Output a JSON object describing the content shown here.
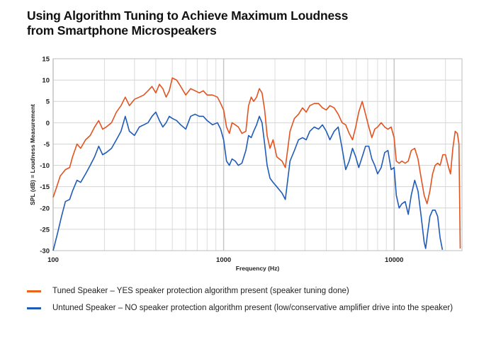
{
  "title_lines": [
    "Using Algorithm Tuning to Achieve Maximum Loudness",
    "from Smartphone Microspeakers"
  ],
  "chart_data": {
    "type": "line",
    "xscale": "log",
    "xlabel": "Frequency (Hz)",
    "ylabel": "SPL (dB) = Loudness Measurement",
    "xlim": [
      100,
      25000
    ],
    "ylim": [
      -30,
      15
    ],
    "xticks": [
      100,
      1000,
      10000
    ],
    "xtick_labels": [
      "100",
      "1000",
      "10000"
    ],
    "yticks": [
      15,
      10,
      5,
      0,
      -5,
      -10,
      -15,
      -20,
      -25,
      -30
    ],
    "ytick_labels": [
      "15",
      "10",
      "5",
      "0",
      "-5",
      "-10",
      "-15",
      "-20",
      "-25",
      "-30"
    ],
    "grid": true,
    "series": [
      {
        "name": "Tuned Speaker",
        "color": "#e2531f",
        "points": [
          [
            100,
            -17.5
          ],
          [
            105,
            -15
          ],
          [
            110,
            -12.5
          ],
          [
            118,
            -11
          ],
          [
            125,
            -10.5
          ],
          [
            130,
            -8
          ],
          [
            138,
            -5
          ],
          [
            145,
            -6
          ],
          [
            155,
            -4
          ],
          [
            165,
            -3
          ],
          [
            175,
            -1
          ],
          [
            185,
            0.5
          ],
          [
            195,
            -1.5
          ],
          [
            205,
            -1
          ],
          [
            220,
            0
          ],
          [
            235,
            2.5
          ],
          [
            250,
            4
          ],
          [
            265,
            6
          ],
          [
            280,
            4
          ],
          [
            300,
            5.5
          ],
          [
            320,
            6
          ],
          [
            340,
            6.5
          ],
          [
            360,
            7.5
          ],
          [
            380,
            8.5
          ],
          [
            400,
            7
          ],
          [
            420,
            9
          ],
          [
            440,
            8
          ],
          [
            460,
            6
          ],
          [
            480,
            7.5
          ],
          [
            500,
            10.5
          ],
          [
            530,
            10
          ],
          [
            560,
            8.5
          ],
          [
            600,
            6.5
          ],
          [
            640,
            8
          ],
          [
            680,
            7.5
          ],
          [
            720,
            7
          ],
          [
            760,
            7.5
          ],
          [
            800,
            6.5
          ],
          [
            860,
            6.5
          ],
          [
            920,
            6
          ],
          [
            960,
            4.5
          ],
          [
            1000,
            3
          ],
          [
            1040,
            -1
          ],
          [
            1080,
            -2.5
          ],
          [
            1120,
            0
          ],
          [
            1170,
            -0.5
          ],
          [
            1220,
            -1
          ],
          [
            1280,
            -2.5
          ],
          [
            1350,
            -2
          ],
          [
            1400,
            4
          ],
          [
            1450,
            6
          ],
          [
            1500,
            5
          ],
          [
            1560,
            6
          ],
          [
            1620,
            8
          ],
          [
            1680,
            7
          ],
          [
            1740,
            3
          ],
          [
            1800,
            -3
          ],
          [
            1870,
            -6
          ],
          [
            1950,
            -4
          ],
          [
            2050,
            -8
          ],
          [
            2200,
            -9
          ],
          [
            2300,
            -10.5
          ],
          [
            2450,
            -2
          ],
          [
            2600,
            1
          ],
          [
            2750,
            2
          ],
          [
            2900,
            3.5
          ],
          [
            3050,
            2.5
          ],
          [
            3200,
            4
          ],
          [
            3400,
            4.5
          ],
          [
            3600,
            4.5
          ],
          [
            3800,
            3.5
          ],
          [
            4000,
            3
          ],
          [
            4200,
            4
          ],
          [
            4450,
            3.5
          ],
          [
            4700,
            2
          ],
          [
            4950,
            0
          ],
          [
            5200,
            -0.5
          ],
          [
            5450,
            -2.5
          ],
          [
            5700,
            -4
          ],
          [
            5950,
            -1
          ],
          [
            6200,
            2.5
          ],
          [
            6500,
            5
          ],
          [
            6800,
            2
          ],
          [
            7100,
            -1
          ],
          [
            7400,
            -3.5
          ],
          [
            7700,
            -1.5
          ],
          [
            8000,
            -1
          ],
          [
            8400,
            0
          ],
          [
            8800,
            -1
          ],
          [
            9200,
            -1.5
          ],
          [
            9600,
            -1
          ],
          [
            10000,
            -3.5
          ],
          [
            10300,
            -9
          ],
          [
            10700,
            -9.5
          ],
          [
            11100,
            -9
          ],
          [
            11600,
            -9.5
          ],
          [
            12100,
            -9
          ],
          [
            12600,
            -6.5
          ],
          [
            13200,
            -6
          ],
          [
            13800,
            -8.5
          ],
          [
            14400,
            -13
          ],
          [
            15000,
            -17
          ],
          [
            15600,
            -19
          ],
          [
            16200,
            -16
          ],
          [
            16800,
            -12
          ],
          [
            17400,
            -10
          ],
          [
            18000,
            -9.5
          ],
          [
            18600,
            -10
          ],
          [
            19300,
            -7.5
          ],
          [
            20000,
            -7.5
          ],
          [
            20700,
            -10
          ],
          [
            21400,
            -12
          ],
          [
            22100,
            -6
          ],
          [
            22800,
            -2
          ],
          [
            23500,
            -2.5
          ],
          [
            24000,
            -5
          ],
          [
            24400,
            -29.5
          ]
        ]
      },
      {
        "name": "Untuned Speaker",
        "color": "#1f5bb8",
        "points": [
          [
            100,
            -30
          ],
          [
            106,
            -26
          ],
          [
            112,
            -22
          ],
          [
            118,
            -18.5
          ],
          [
            125,
            -18
          ],
          [
            130,
            -16
          ],
          [
            138,
            -13.5
          ],
          [
            145,
            -14
          ],
          [
            155,
            -12
          ],
          [
            165,
            -10
          ],
          [
            175,
            -8
          ],
          [
            185,
            -5.5
          ],
          [
            195,
            -7.5
          ],
          [
            205,
            -7
          ],
          [
            220,
            -6
          ],
          [
            235,
            -4
          ],
          [
            250,
            -2
          ],
          [
            265,
            1.5
          ],
          [
            280,
            -2
          ],
          [
            300,
            -3
          ],
          [
            320,
            -1
          ],
          [
            340,
            -0.5
          ],
          [
            360,
            0
          ],
          [
            380,
            1.5
          ],
          [
            400,
            2.5
          ],
          [
            420,
            0.5
          ],
          [
            440,
            -1
          ],
          [
            460,
            0
          ],
          [
            480,
            1.5
          ],
          [
            500,
            1
          ],
          [
            530,
            0.5
          ],
          [
            560,
            -0.5
          ],
          [
            600,
            -1.5
          ],
          [
            640,
            1.5
          ],
          [
            680,
            2
          ],
          [
            720,
            1.5
          ],
          [
            760,
            1.5
          ],
          [
            800,
            0.5
          ],
          [
            860,
            -0.5
          ],
          [
            920,
            0
          ],
          [
            960,
            -1.5
          ],
          [
            1000,
            -4
          ],
          [
            1040,
            -9
          ],
          [
            1080,
            -10
          ],
          [
            1120,
            -8.5
          ],
          [
            1170,
            -9
          ],
          [
            1220,
            -10
          ],
          [
            1280,
            -9.5
          ],
          [
            1350,
            -6.5
          ],
          [
            1400,
            -3
          ],
          [
            1450,
            -3.5
          ],
          [
            1500,
            -2
          ],
          [
            1560,
            -0.5
          ],
          [
            1620,
            1.5
          ],
          [
            1680,
            0
          ],
          [
            1740,
            -5
          ],
          [
            1800,
            -10
          ],
          [
            1870,
            -13
          ],
          [
            1950,
            -14
          ],
          [
            2050,
            -15
          ],
          [
            2200,
            -16.5
          ],
          [
            2300,
            -18
          ],
          [
            2450,
            -9
          ],
          [
            2600,
            -6.5
          ],
          [
            2750,
            -4
          ],
          [
            2900,
            -3.5
          ],
          [
            3050,
            -4
          ],
          [
            3200,
            -2
          ],
          [
            3400,
            -1
          ],
          [
            3600,
            -1.5
          ],
          [
            3800,
            -0.5
          ],
          [
            4000,
            -2
          ],
          [
            4200,
            -4
          ],
          [
            4450,
            -2
          ],
          [
            4700,
            -1
          ],
          [
            4950,
            -6
          ],
          [
            5200,
            -11
          ],
          [
            5450,
            -9
          ],
          [
            5700,
            -6
          ],
          [
            5950,
            -8
          ],
          [
            6200,
            -10.5
          ],
          [
            6500,
            -8
          ],
          [
            6800,
            -5.5
          ],
          [
            7100,
            -5.5
          ],
          [
            7400,
            -8.5
          ],
          [
            7700,
            -10
          ],
          [
            8000,
            -12
          ],
          [
            8400,
            -10.5
          ],
          [
            8800,
            -7
          ],
          [
            9200,
            -6.5
          ],
          [
            9600,
            -11
          ],
          [
            10000,
            -10.5
          ],
          [
            10300,
            -17
          ],
          [
            10700,
            -20
          ],
          [
            11100,
            -19
          ],
          [
            11600,
            -18.5
          ],
          [
            12100,
            -21.5
          ],
          [
            12600,
            -17
          ],
          [
            13200,
            -13.5
          ],
          [
            13800,
            -16
          ],
          [
            14400,
            -22
          ],
          [
            15000,
            -28
          ],
          [
            15300,
            -29.5
          ],
          [
            15700,
            -26
          ],
          [
            16200,
            -22
          ],
          [
            16800,
            -20.5
          ],
          [
            17400,
            -20.5
          ],
          [
            18000,
            -22
          ],
          [
            18600,
            -27
          ],
          [
            19200,
            -29.8
          ]
        ]
      }
    ],
    "legend": [
      {
        "color": "#e8651c",
        "text": "Tuned Speaker – YES speaker protection algorithm present (speaker tuning done)"
      },
      {
        "color": "#1f5bb8",
        "text": "Untuned Speaker – NO speaker protection algorithm present (low/conservative amplifier drive into the speaker)"
      }
    ]
  }
}
